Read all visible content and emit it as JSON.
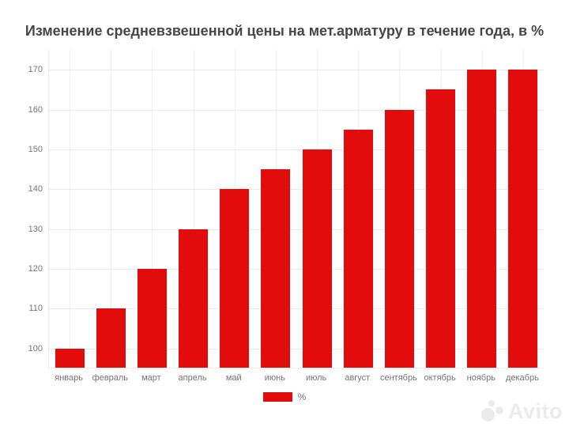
{
  "title": "Изменение средневзвешенной цены на мет.арматуру в течение года, в %",
  "chart_data": {
    "type": "bar",
    "title": "Изменение средневзвешенной цены на мет.арматуру в течение года, в %",
    "categories": [
      "январь",
      "февраль",
      "март",
      "апрель",
      "май",
      "июнь",
      "июль",
      "август",
      "сентябрь",
      "октябрь",
      "ноябрь",
      "декабрь"
    ],
    "series": [
      {
        "name": "%",
        "values": [
          100,
          110,
          120,
          130,
          140,
          145,
          150,
          155,
          160,
          165,
          170,
          170
        ]
      }
    ],
    "xlabel": "",
    "ylabel": "",
    "yticks": [
      100,
      110,
      120,
      130,
      140,
      150,
      160,
      170
    ],
    "ylim": [
      95.2,
      175
    ],
    "grid": true,
    "legend_position": "bottom",
    "bar_color": "#e20c0c"
  },
  "legend": {
    "label": "%",
    "swatch_color": "#e20c0c"
  },
  "watermark": {
    "text": "Avito"
  },
  "colors": {
    "bar": "#e20c0c",
    "grid": "#e9e9e9",
    "axis_text": "#757575",
    "title_text": "#464646",
    "watermark": "#ebebeb",
    "background": "#ffffff"
  }
}
